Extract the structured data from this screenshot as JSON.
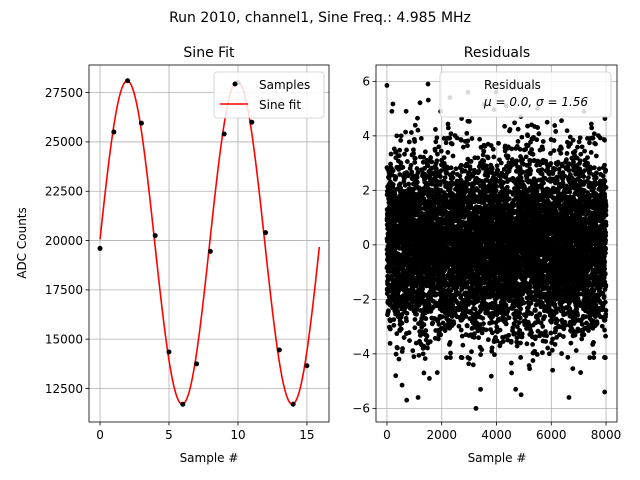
{
  "figure": {
    "suptitle": "Run 2010, channel1, Sine Freq.: 4.985 MHz"
  },
  "chart_data": [
    {
      "type": "line",
      "title": "Sine Fit",
      "xlabel": "Sample #",
      "ylabel": "ADC Counts",
      "xlim": [
        -0.8,
        16.6
      ],
      "ylim": [
        10800,
        28900
      ],
      "xticks": [
        0,
        5,
        10,
        15
      ],
      "yticks": [
        12500,
        15000,
        17500,
        20000,
        22500,
        25000,
        27500
      ],
      "grid": true,
      "legend": {
        "placement": "top-right",
        "entries": [
          "Samples",
          "Sine fit"
        ]
      },
      "series": [
        {
          "name": "Samples",
          "kind": "scatter",
          "color": "#000000",
          "x": [
            0,
            1,
            2,
            3,
            4,
            5,
            6,
            7,
            8,
            9,
            10,
            11,
            12,
            13,
            14,
            15
          ],
          "y": [
            19600,
            25500,
            28100,
            25950,
            20250,
            14350,
            11700,
            13750,
            19450,
            25400,
            28000,
            26000,
            20400,
            14450,
            11700,
            13650
          ]
        },
        {
          "name": "Sine fit",
          "kind": "line",
          "color": "#ff0000",
          "function": {
            "offset": 19900,
            "amplitude": 8200,
            "period": 7.98,
            "phase": 0.02,
            "x_start": 0,
            "x_end": 15.9
          }
        }
      ]
    },
    {
      "type": "scatter",
      "title": "Residuals",
      "xlabel": "Sample #",
      "ylabel": "",
      "xlim": [
        -400,
        8400
      ],
      "ylim": [
        -6.5,
        6.6
      ],
      "xticks": [
        0,
        2000,
        4000,
        6000,
        8000
      ],
      "yticks": [
        -6,
        -4,
        -2,
        0,
        2,
        4,
        6
      ],
      "grid": true,
      "legend": {
        "placement": "top-right",
        "entries": [
          "Residuals",
          "μ = 0.0, σ = 1.56"
        ]
      },
      "series": [
        {
          "name": "Residuals",
          "color": "#000000",
          "count": 8000,
          "mean": 0.0,
          "std": 1.56,
          "x_range": [
            0,
            8000
          ],
          "highlighted_points": [
            [
              0,
              5.85
            ],
            [
              180,
              4.9
            ],
            [
              320,
              -4.8
            ],
            [
              520,
              4.0
            ],
            [
              700,
              4.9
            ],
            [
              720,
              -5.7
            ],
            [
              1350,
              -4.7
            ],
            [
              1500,
              5.9
            ],
            [
              2300,
              5.4
            ],
            [
              3250,
              -6.0
            ],
            [
              4350,
              5.1
            ],
            [
              4550,
              -4.7
            ],
            [
              4700,
              -5.3
            ],
            [
              4900,
              -5.5
            ],
            [
              5500,
              5.0
            ],
            [
              5850,
              4.5
            ],
            [
              6050,
              -4.6
            ],
            [
              7950,
              -5.4
            ]
          ]
        }
      ]
    }
  ]
}
